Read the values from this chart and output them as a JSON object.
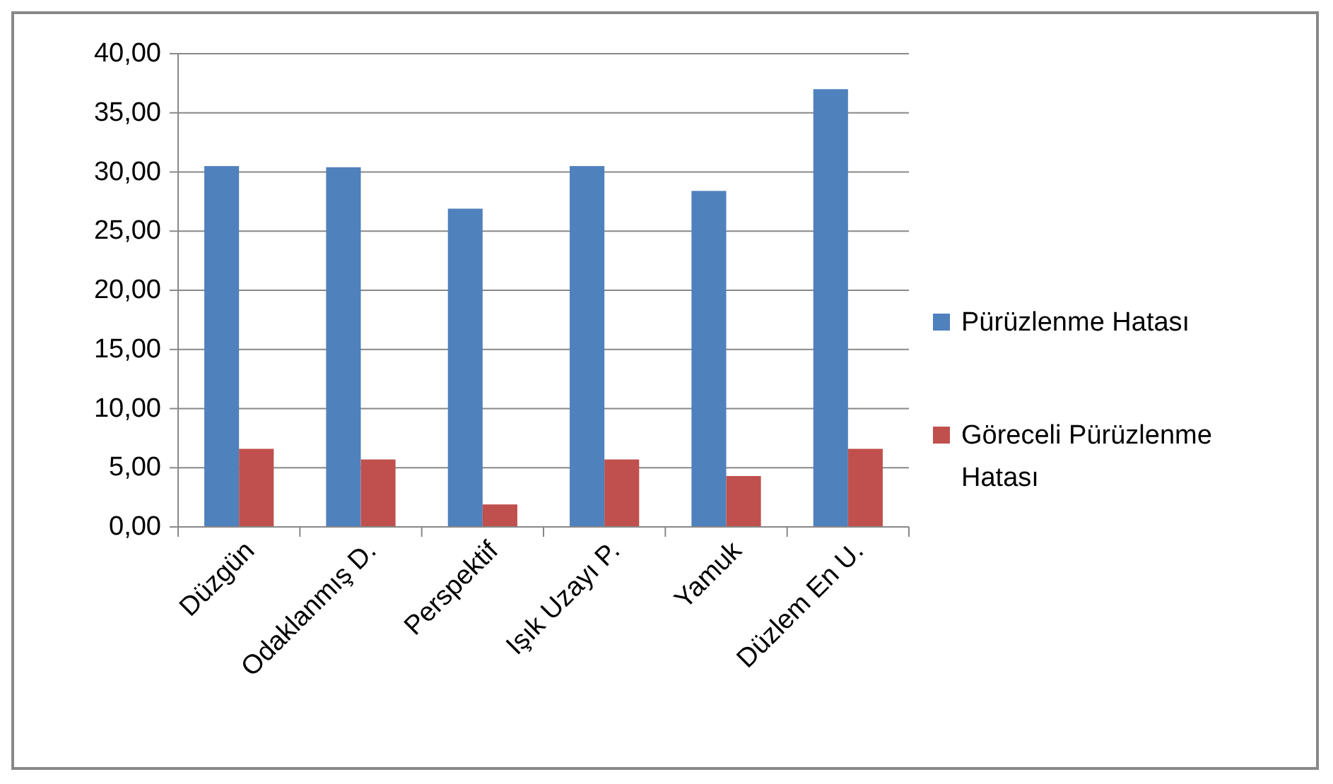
{
  "chart_data": {
    "type": "bar",
    "categories": [
      "Düzgün",
      "Odaklanmış D.",
      "Perspektif",
      "Işık Uzayı P.",
      "Yamuk",
      "Düzlem En U."
    ],
    "series": [
      {
        "name": "Pürüzlenme Hatası",
        "color": "#4f81bd",
        "values": [
          30.5,
          30.4,
          26.9,
          30.5,
          28.4,
          37.0
        ]
      },
      {
        "name": "Göreceli Pürüzlenme Hatası",
        "color": "#c0504d",
        "values": [
          6.6,
          5.7,
          1.9,
          5.7,
          4.3,
          6.6
        ]
      }
    ],
    "ylim": [
      0,
      40
    ],
    "yticks": [
      {
        "value": 0,
        "label": "0,00"
      },
      {
        "value": 5,
        "label": "5,00"
      },
      {
        "value": 10,
        "label": "10,00"
      },
      {
        "value": 15,
        "label": "15,00"
      },
      {
        "value": 20,
        "label": "20,00"
      },
      {
        "value": 25,
        "label": "25,00"
      },
      {
        "value": 30,
        "label": "30,00"
      },
      {
        "value": 35,
        "label": "35,00"
      },
      {
        "value": 40,
        "label": "40,00"
      }
    ],
    "grid": "y",
    "legend": "right"
  }
}
